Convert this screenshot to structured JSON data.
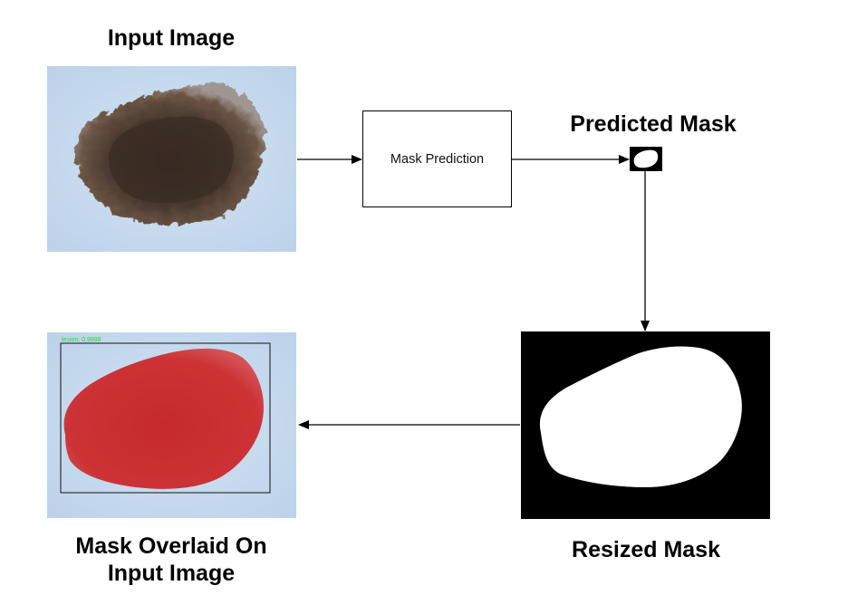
{
  "titles": {
    "input_image": "Input Image",
    "predicted_mask": "Predicted Mask",
    "resized_mask": "Resized Mask",
    "overlay_line1": "Mask Overlaid On",
    "overlay_line2": "Input Image"
  },
  "process": {
    "label": "Mask Prediction"
  },
  "overlay": {
    "detection_label": "lesion: 0.9998"
  },
  "colors": {
    "skin_background": "#c9dcee",
    "lesion_brown": "#4a3a30",
    "mask_overlay_red": "#c83232",
    "mask_background": "#000000",
    "mask_foreground": "#ffffff",
    "label_green": "#22dd22",
    "arrow": "#000000"
  },
  "icons": {
    "input_image": "dermoscopic-lesion-image",
    "predicted_mask": "small-binary-mask",
    "resized_mask": "binary-mask",
    "overlay_image": "lesion-with-red-mask-overlay"
  }
}
